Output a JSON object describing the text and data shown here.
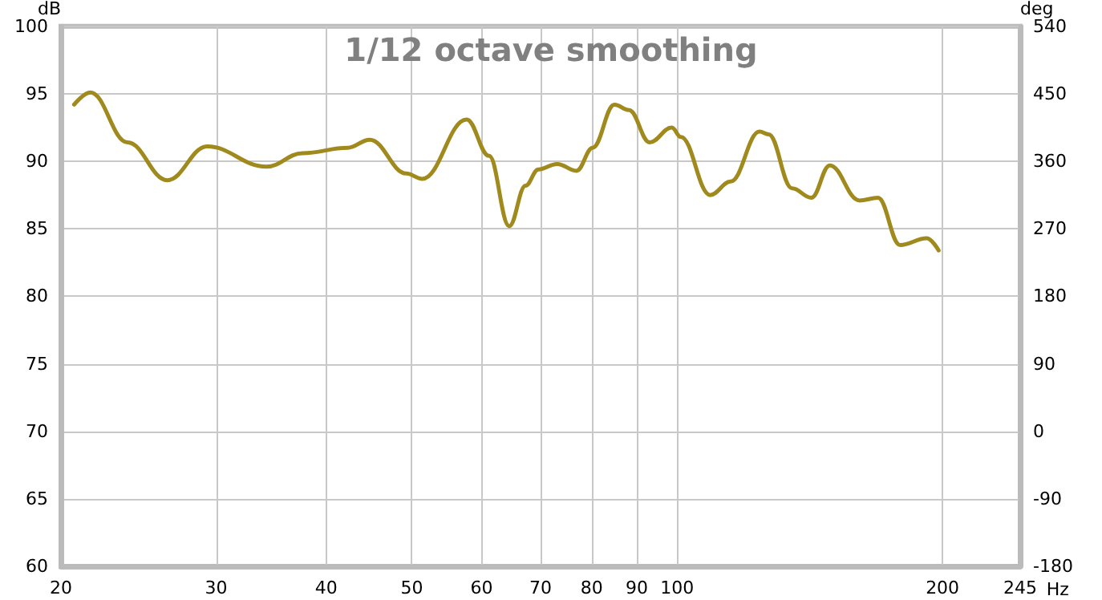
{
  "chart_data": {
    "type": "line",
    "title": "1/12 octave smoothing",
    "xlabel": "Hz",
    "ylabel": "dB",
    "y2label": "deg",
    "log": "x",
    "grid": true,
    "marker": "none",
    "line_style": "solid",
    "xlim": [
      20,
      245
    ],
    "xticks": [
      20,
      30,
      40,
      50,
      60,
      70,
      80,
      90,
      100,
      200,
      245
    ],
    "ylim": [
      60,
      100
    ],
    "yticks": [
      60,
      65,
      70,
      75,
      80,
      85,
      90,
      95,
      100
    ],
    "y2lim": [
      -180,
      540
    ],
    "y2ticks": [
      -180,
      -90,
      0,
      90,
      180,
      270,
      360,
      450,
      540
    ],
    "series": [
      {
        "color": "#a08a1e",
        "x": [
          20.7,
          21.6,
          23.8,
          26.4,
          29.3,
          34.2,
          37.6,
          42.3,
          44.8,
          49.3,
          51.4,
          57.7,
          61.2,
          64.5,
          67.3,
          69.6,
          73.1,
          76.9,
          80.2,
          84.9,
          88.2,
          93.1,
          98.6,
          101,
          109,
          115,
          124,
          127,
          135,
          142,
          149,
          161,
          169,
          179,
          192,
          198
        ],
        "values": [
          94.2,
          95.1,
          91.4,
          88.6,
          91.1,
          89.6,
          90.6,
          91.0,
          91.6,
          89.1,
          88.7,
          93.1,
          90.4,
          85.2,
          88.2,
          89.4,
          89.8,
          89.3,
          91.0,
          94.2,
          93.8,
          91.4,
          92.5,
          91.8,
          87.5,
          88.5,
          92.2,
          92.0,
          88.0,
          87.3,
          89.7,
          87.1,
          87.3,
          83.8,
          84.3,
          83.4
        ]
      }
    ]
  }
}
